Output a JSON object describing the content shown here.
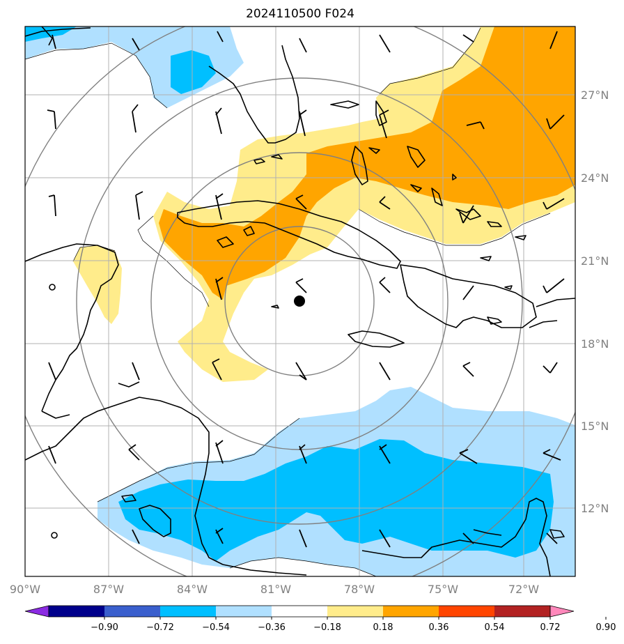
{
  "title": "2024110500 F024",
  "axes": {
    "lon_labels": [
      "90°W",
      "87°W",
      "84°W",
      "81°W",
      "78°W",
      "75°W",
      "72°W"
    ],
    "lat_labels": [
      "27°N",
      "24°N",
      "21°N",
      "18°N",
      "15°N",
      "12°N"
    ]
  },
  "colorbar": {
    "ticks": [
      "−0.90",
      "−0.72",
      "−0.54",
      "−0.36",
      "−0.18",
      "0.18",
      "0.36",
      "0.54",
      "0.72",
      "0.90"
    ],
    "colors": [
      "#8b2be2",
      "#00008b",
      "#3a5fcd",
      "#00bfff",
      "#b0e0ff",
      "#ffffff",
      "#ffec8b",
      "#ffa500",
      "#ff4500",
      "#b22222",
      "#ff88bb"
    ]
  },
  "fill_colors": {
    "light_yellow": "#ffec8b",
    "orange": "#ffa500",
    "light_blue": "#b0e0ff",
    "deep_sky_blue": "#00bfff"
  },
  "storm_center_marker": "filled-black-circle"
}
